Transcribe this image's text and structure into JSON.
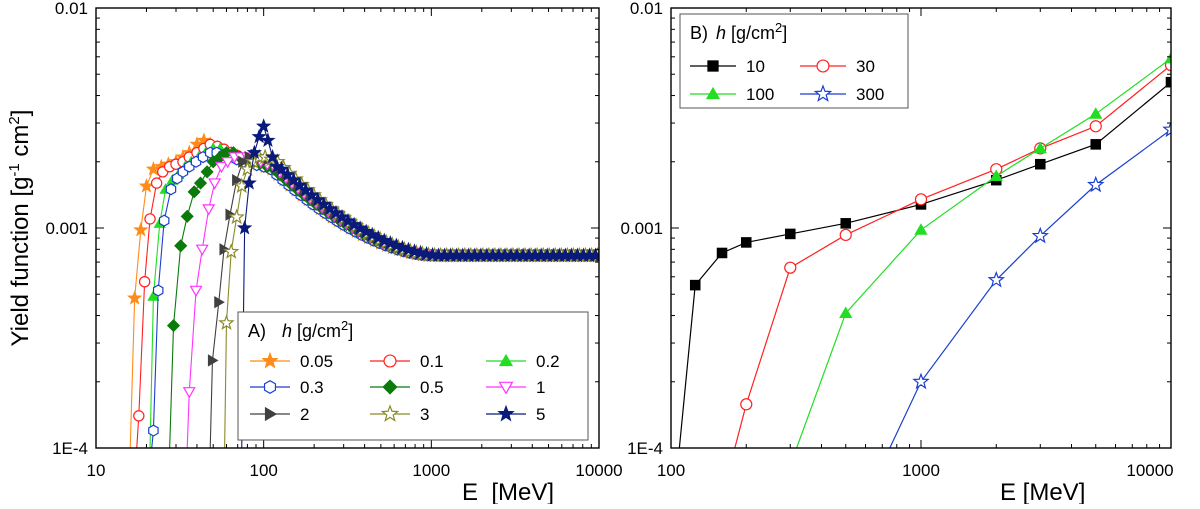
{
  "figure": {
    "ylabel_main": "Yield function [g",
    "ylabel_sup1": "-1",
    "ylabel_mid": " cm",
    "ylabel_sup2": "2",
    "ylabel_end": "]"
  },
  "chart_data": [
    {
      "type": "line",
      "panel": "A",
      "xscale": "log",
      "yscale": "log",
      "xlim": [
        10,
        10000
      ],
      "ylim": [
        0.0001,
        0.01
      ],
      "xlabel": "E  [MeV]",
      "x_ticks": [
        "10",
        "100",
        "1000",
        "10000"
      ],
      "y_ticks": [
        "1E-4",
        "0.001",
        "0.01"
      ],
      "legend_prefix": "A)",
      "legend_title_var": "h",
      "legend_title_unit_pre": " [g/cm",
      "legend_title_unit_sup": "2",
      "legend_title_unit_post": "]",
      "legend_position": "bottom-right",
      "series": [
        {
          "name": "0.05",
          "color": "#ff8c1a",
          "marker": "star-filled",
          "rise": [
            [
              16,
              0.0001
            ],
            [
              17,
              0.00048
            ],
            [
              18.5,
              0.00098
            ],
            [
              20,
              0.00155
            ],
            [
              22,
              0.00185
            ],
            [
              24.5,
              0.0019
            ],
            [
              27,
              0.00195
            ],
            [
              30,
              0.002
            ],
            [
              33,
              0.0021
            ],
            [
              36,
              0.0022
            ],
            [
              40,
              0.0024
            ],
            [
              44,
              0.0025
            ],
            [
              48,
              0.0024
            ],
            [
              53,
              0.00232
            ],
            [
              58,
              0.00225
            ],
            [
              64,
              0.00218
            ],
            [
              70,
              0.00212
            ],
            [
              77,
              0.00206
            ],
            [
              85,
              0.002
            ],
            [
              93,
              0.00195
            ],
            [
              102,
              0.0019
            ],
            [
              112,
              0.00185
            ]
          ]
        },
        {
          "name": "0.1",
          "color": "#ff2020",
          "marker": "circle-open",
          "rise": [
            [
              17.5,
              0.0001
            ],
            [
              18,
              0.00014
            ],
            [
              19.5,
              0.00057
            ],
            [
              21,
              0.0011
            ],
            [
              23,
              0.0016
            ],
            [
              25,
              0.0018
            ],
            [
              27.5,
              0.0019
            ],
            [
              30,
              0.00195
            ],
            [
              33,
              0.002
            ],
            [
              36,
              0.0021
            ],
            [
              40,
              0.0022
            ],
            [
              44,
              0.0023
            ],
            [
              48,
              0.0024
            ],
            [
              53,
              0.00235
            ],
            [
              58,
              0.00228
            ],
            [
              64,
              0.0022
            ],
            [
              70,
              0.00213
            ],
            [
              77,
              0.00206
            ],
            [
              85,
              0.002
            ],
            [
              93,
              0.00195
            ],
            [
              102,
              0.0019
            ],
            [
              112,
              0.00185
            ]
          ]
        },
        {
          "name": "0.2",
          "color": "#22dd22",
          "marker": "triangle-up-filled",
          "rise": [
            [
              21,
              0.0001
            ],
            [
              22,
              0.00049
            ],
            [
              24,
              0.00105
            ],
            [
              26,
              0.0015
            ],
            [
              28.5,
              0.00165
            ],
            [
              31,
              0.00175
            ],
            [
              34,
              0.0019
            ],
            [
              37,
              0.002
            ],
            [
              41,
              0.0021
            ],
            [
              45,
              0.0022
            ],
            [
              50,
              0.0023
            ],
            [
              55,
              0.0023
            ],
            [
              60,
              0.0022
            ],
            [
              66,
              0.00215
            ],
            [
              72,
              0.0021
            ],
            [
              79,
              0.00205
            ],
            [
              87,
              0.002
            ],
            [
              95,
              0.00195
            ],
            [
              105,
              0.0019
            ],
            [
              115,
              0.00185
            ]
          ]
        },
        {
          "name": "0.3",
          "color": "#1a3fd0",
          "marker": "hexagon-open",
          "rise": [
            [
              21.5,
              0.0001
            ],
            [
              22,
              0.00012
            ],
            [
              23.5,
              0.00052
            ],
            [
              25.5,
              0.00108
            ],
            [
              28,
              0.0015
            ],
            [
              30.5,
              0.00168
            ],
            [
              33,
              0.0018
            ],
            [
              36,
              0.0019
            ],
            [
              39.5,
              0.002
            ],
            [
              43.5,
              0.0021
            ],
            [
              48,
              0.0022
            ],
            [
              52.5,
              0.0022
            ],
            [
              57.5,
              0.00215
            ],
            [
              63,
              0.0021
            ],
            [
              69,
              0.00205
            ],
            [
              76,
              0.002
            ],
            [
              83,
              0.00196
            ],
            [
              91,
              0.00193
            ],
            [
              100,
              0.0019
            ],
            [
              110,
              0.00185
            ]
          ]
        },
        {
          "name": "0.5",
          "color": "#0a7a0a",
          "marker": "diamond-filled",
          "rise": [
            [
              27.5,
              0.0001
            ],
            [
              29,
              0.00036
            ],
            [
              32,
              0.00083
            ],
            [
              35,
              0.00113
            ],
            [
              38.5,
              0.00146
            ],
            [
              42,
              0.0016
            ],
            [
              46,
              0.0018
            ],
            [
              50,
              0.002
            ],
            [
              55,
              0.0021
            ],
            [
              60,
              0.0022
            ],
            [
              66,
              0.0022
            ],
            [
              72,
              0.0021
            ],
            [
              79,
              0.00205
            ],
            [
              87,
              0.002
            ],
            [
              95,
              0.00196
            ],
            [
              105,
              0.0019
            ],
            [
              115,
              0.00185
            ]
          ]
        },
        {
          "name": "1",
          "color": "#ff33ff",
          "marker": "triangle-down-open",
          "rise": [
            [
              35,
              0.0001
            ],
            [
              36,
              0.00018
            ],
            [
              39.5,
              0.00052
            ],
            [
              43,
              0.0008
            ],
            [
              47,
              0.00122
            ],
            [
              51,
              0.0016
            ],
            [
              56,
              0.0019
            ],
            [
              61,
              0.002
            ],
            [
              67,
              0.0021
            ],
            [
              73,
              0.0021
            ],
            [
              80,
              0.0021
            ],
            [
              88,
              0.00205
            ],
            [
              96,
              0.002
            ],
            [
              105,
              0.00195
            ],
            [
              115,
              0.0019
            ]
          ]
        },
        {
          "name": "2",
          "color": "#404040",
          "marker": "triangle-right-filled",
          "rise": [
            [
              48,
              0.0001
            ],
            [
              49.5,
              0.00025
            ],
            [
              54,
              0.00046
            ],
            [
              58,
              0.0008
            ],
            [
              63,
              0.00115
            ],
            [
              69,
              0.00165
            ],
            [
              75,
              0.002
            ],
            [
              82,
              0.0021
            ],
            [
              89,
              0.00215
            ],
            [
              97,
              0.0021
            ],
            [
              106,
              0.00205
            ],
            [
              116,
              0.002
            ]
          ]
        },
        {
          "name": "3",
          "color": "#8a8a28",
          "marker": "star-open",
          "rise": [
            [
              58.5,
              0.0001
            ],
            [
              60,
              0.00037
            ],
            [
              64,
              0.00078
            ],
            [
              69,
              0.00112
            ],
            [
              74,
              0.00155
            ],
            [
              80,
              0.00185
            ],
            [
              87,
              0.002
            ],
            [
              94,
              0.0021
            ],
            [
              102,
              0.0021
            ],
            [
              111,
              0.00205
            ],
            [
              121,
              0.002
            ]
          ]
        },
        {
          "name": "5",
          "color": "#0a1a7a",
          "marker": "star-filled",
          "rise": [
            [
              74,
              0.0001
            ],
            [
              77,
              0.001
            ],
            [
              82,
              0.0016
            ],
            [
              88,
              0.0022
            ],
            [
              94,
              0.0026
            ],
            [
              100,
              0.0029
            ],
            [
              106,
              0.0025
            ],
            [
              113,
              0.0021
            ],
            [
              120,
              0.0019
            ],
            [
              128,
              0.00185
            ]
          ]
        }
      ]
    },
    {
      "type": "line",
      "panel": "B",
      "xscale": "log",
      "yscale": "log",
      "xlim": [
        100,
        10000
      ],
      "ylim": [
        0.0001,
        0.01
      ],
      "xlabel": "E [MeV]",
      "x_ticks": [
        "100",
        "1000",
        "10000"
      ],
      "y_ticks": [
        "1E-4",
        "0.001",
        "0.01"
      ],
      "legend_prefix": "B)",
      "legend_title_var": "h",
      "legend_title_unit_pre": " [g/cm",
      "legend_title_unit_sup": "2",
      "legend_title_unit_post": "]",
      "legend_position": "top-left",
      "series": [
        {
          "name": "10",
          "color": "#000000",
          "marker": "square-filled",
          "points": [
            [
              125,
              0.00055
            ],
            [
              160,
              0.00077
            ],
            [
              200,
              0.00086
            ],
            [
              300,
              0.00094
            ],
            [
              500,
              0.00105
            ],
            [
              1000,
              0.00128
            ],
            [
              2000,
              0.00165
            ],
            [
              3000,
              0.00195
            ],
            [
              5000,
              0.0024
            ],
            [
              10000,
              0.0046
            ]
          ],
          "lead": [
            [
              108,
              0.0001
            ],
            [
              125,
              0.00055
            ]
          ]
        },
        {
          "name": "30",
          "color": "#ff2020",
          "marker": "circle-open",
          "points": [
            [
              200,
              0.000158
            ],
            [
              300,
              0.00066
            ],
            [
              500,
              0.00093
            ],
            [
              1000,
              0.00135
            ],
            [
              2000,
              0.00185
            ],
            [
              3000,
              0.0023
            ],
            [
              5000,
              0.0029
            ],
            [
              10000,
              0.0055
            ]
          ],
          "lead": [
            [
              180,
              0.0001
            ],
            [
              200,
              0.000158
            ]
          ]
        },
        {
          "name": "100",
          "color": "#22dd22",
          "marker": "triangle-up-filled",
          "points": [
            [
              500,
              0.00041
            ],
            [
              1000,
              0.00098
            ],
            [
              2000,
              0.00172
            ],
            [
              3000,
              0.0023
            ],
            [
              5000,
              0.0033
            ],
            [
              10000,
              0.0059
            ]
          ],
          "lead": [
            [
              318,
              0.0001
            ],
            [
              500,
              0.00041
            ]
          ]
        },
        {
          "name": "300",
          "color": "#1a3fd0",
          "marker": "star-open",
          "points": [
            [
              1000,
              0.0002
            ],
            [
              2000,
              0.00058
            ],
            [
              3000,
              0.00092
            ],
            [
              5000,
              0.00157
            ],
            [
              10000,
              0.0028
            ]
          ],
          "lead": [
            [
              750,
              0.0001
            ],
            [
              1000,
              0.0002
            ]
          ]
        }
      ]
    }
  ]
}
